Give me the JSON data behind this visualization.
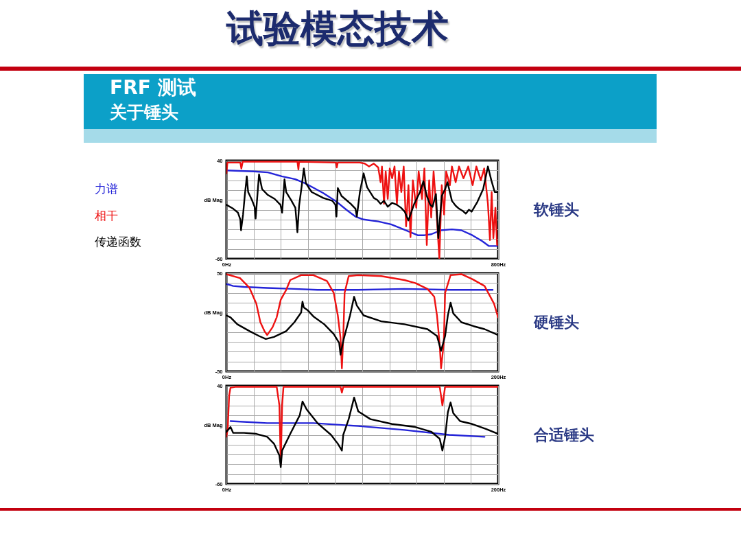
{
  "chart_data": [
    {
      "type": "line",
      "ylabel": "dB Mag",
      "annotations": [
        "试验模态技术",
        "FRF 测试",
        "关于锤头",
        "软锤头"
      ],
      "legend": "left",
      "grid": true,
      "xlim": [
        0,
        800
      ],
      "ylim": [
        -60,
        40
      ],
      "xticks": [
        {
          "value": 0,
          "label": "0Hz"
        },
        {
          "value": 80,
          "label": null
        },
        {
          "value": 160,
          "label": null
        },
        {
          "value": 240,
          "label": null
        },
        {
          "value": 320,
          "label": null
        },
        {
          "value": 400,
          "label": null
        },
        {
          "value": 480,
          "label": null
        },
        {
          "value": 560,
          "label": null
        },
        {
          "value": 640,
          "label": null
        },
        {
          "value": 720,
          "label": null
        },
        {
          "value": 800,
          "label": "800Hz"
        }
      ],
      "yticks": [
        -60,
        {
          "value": -50,
          "label": null
        },
        {
          "value": -40,
          "label": null
        },
        {
          "value": -30,
          "label": null
        },
        {
          "value": -20,
          "label": null
        },
        {
          "value": -10,
          "label": null
        },
        {
          "value": 0,
          "label": null
        },
        {
          "value": 10,
          "label": null
        },
        {
          "value": 20,
          "label": null
        },
        {
          "value": 30,
          "label": null
        },
        40
      ],
      "series": [
        {
          "name": "力谱",
          "color": "#2424d8",
          "x": [
            0,
            81,
            122,
            163,
            203,
            231,
            258,
            285,
            325,
            353,
            380,
            404,
            447,
            485,
            529,
            563,
            583,
            603,
            631,
            664,
            692,
            724,
            753,
            773,
            797
          ],
          "values": [
            30,
            29,
            28,
            24,
            21,
            17,
            12,
            7,
            -2,
            -10,
            -17,
            -20,
            -22,
            -25,
            -31,
            -36,
            -36,
            -35,
            -31,
            -30,
            -31,
            -36,
            -42,
            -47,
            -47
          ]
        },
        {
          "name": "相干",
          "color": "#ee1111",
          "x": [
            0,
            3,
            41,
            44,
            48,
            122,
            209,
            212,
            214,
            323,
            325,
            328,
            393,
            407,
            420,
            434,
            447,
            454,
            458,
            464,
            469,
            475,
            481,
            488,
            495,
            502,
            508,
            515,
            522,
            529,
            536,
            542,
            549,
            559,
            566,
            576,
            583,
            590,
            597,
            603,
            610,
            617,
            627,
            634,
            641,
            647,
            658,
            664,
            675,
            685,
            698,
            712,
            725,
            736,
            749,
            759,
            770,
            776,
            781,
            786,
            792,
            797
          ],
          "values": [
            27,
            38,
            38,
            32,
            39,
            39,
            39,
            31,
            39,
            38,
            33,
            38,
            38,
            37,
            34,
            37,
            33,
            18,
            34,
            -4,
            29,
            1,
            32,
            22,
            34,
            -4,
            29,
            8,
            34,
            -27,
            15,
            -38,
            20,
            -8,
            29,
            1,
            32,
            -46,
            20,
            -18,
            29,
            -4,
            -60,
            15,
            -15,
            29,
            15,
            34,
            18,
            34,
            22,
            34,
            15,
            34,
            20,
            32,
            -4,
            -41,
            8,
            -39,
            -8,
            -46
          ]
        },
        {
          "name": "传递函数",
          "color": "#000000",
          "x": [
            0,
            20,
            34,
            41,
            43,
            49,
            54,
            60,
            64,
            75,
            83,
            86,
            92,
            96,
            105,
            122,
            142,
            159,
            164,
            168,
            171,
            176,
            190,
            203,
            209,
            214,
            222,
            228,
            234,
            251,
            285,
            312,
            321,
            324,
            328,
            339,
            366,
            380,
            384,
            393,
            404,
            414,
            434,
            444,
            454,
            464,
            475,
            488,
            502,
            514,
            525,
            536,
            553,
            570,
            580,
            590,
            600,
            607,
            617,
            624,
            634,
            644,
            651,
            664,
            675,
            685,
            695,
            705,
            714,
            722,
            739,
            756,
            770,
            780,
            790,
            800
          ],
          "values": [
            -5,
            -9,
            -13,
            -20,
            -31,
            -15,
            4,
            24,
            8,
            0,
            -7,
            -19,
            8,
            26,
            11,
            5,
            1,
            -5,
            -13,
            6,
            21,
            8,
            0,
            -8,
            -33,
            -6,
            15,
            32,
            17,
            8,
            2,
            -1,
            -5,
            -17,
            12,
            4,
            -4,
            -9,
            -17,
            8,
            27,
            13,
            2,
            0,
            -4,
            -1,
            -7,
            -3,
            -5,
            -8,
            -12,
            -21,
            -4,
            8,
            19,
            4,
            -5,
            -7,
            6,
            -39,
            4,
            11,
            18,
            -1,
            -6,
            -9,
            -11,
            -14,
            -10,
            -12,
            -2,
            11,
            34,
            20,
            8,
            8
          ]
        }
      ]
    },
    {
      "type": "line",
      "ylabel": "dB Mag",
      "annotations": [
        "硬锤头"
      ],
      "grid": true,
      "xlim": [
        0,
        200
      ],
      "ylim": [
        -50,
        50
      ],
      "xticks": [
        {
          "value": 0,
          "label": "0Hz"
        },
        {
          "value": 20,
          "label": null
        },
        {
          "value": 40,
          "label": null
        },
        {
          "value": 60,
          "label": null
        },
        {
          "value": 80,
          "label": null
        },
        {
          "value": 100,
          "label": null
        },
        {
          "value": 120,
          "label": null
        },
        {
          "value": 140,
          "label": null
        },
        {
          "value": 160,
          "label": null
        },
        {
          "value": 180,
          "label": null
        },
        {
          "value": 200,
          "label": "200Hz"
        }
      ],
      "yticks": [
        -50,
        {
          "value": -40,
          "label": null
        },
        {
          "value": -30,
          "label": null
        },
        {
          "value": -20,
          "label": null
        },
        {
          "value": -10,
          "label": null
        },
        {
          "value": 0,
          "label": null
        },
        {
          "value": 10,
          "label": null
        },
        {
          "value": 20,
          "label": null
        },
        {
          "value": 30,
          "label": null
        },
        {
          "value": 40,
          "label": null
        },
        50
      ],
      "series": [
        {
          "color": "#2424d8",
          "x": [
            0,
            5,
            13,
            30,
            50,
            67,
            97,
            131,
            165,
            196
          ],
          "values": [
            39,
            37,
            36,
            35,
            34,
            33,
            33,
            34,
            33,
            33
          ]
        },
        {
          "color": "#ee1111",
          "x": [
            0,
            10,
            17,
            22,
            25,
            28,
            30,
            34,
            37,
            40,
            44,
            47,
            55,
            64,
            74,
            79,
            82,
            84,
            85,
            86,
            87,
            90,
            97,
            114,
            131,
            139,
            148,
            153,
            155,
            157,
            158,
            160,
            161,
            165,
            173,
            181,
            190,
            197,
            200
          ],
          "values": [
            49,
            45,
            35,
            19,
            0,
            -9,
            -13,
            -5,
            5,
            23,
            33,
            43,
            48,
            48,
            42,
            30,
            7,
            -16,
            -47,
            -16,
            30,
            47,
            48,
            47,
            43,
            40,
            34,
            26,
            7,
            -23,
            -47,
            -21,
            30,
            48,
            49,
            44,
            37,
            19,
            5
          ]
        },
        {
          "color": "#000000",
          "x": [
            0,
            3,
            8,
            17,
            24,
            29,
            35,
            44,
            50,
            55,
            56,
            57,
            60,
            64,
            72,
            79,
            83,
            84,
            86,
            91,
            94,
            96,
            101,
            114,
            131,
            148,
            155,
            158,
            161,
            163,
            165,
            167,
            173,
            182,
            190,
            200
          ],
          "values": [
            7,
            5,
            -2,
            -9,
            -14,
            -17,
            -15,
            -9,
            0,
            10,
            21,
            15,
            12,
            6,
            -2,
            -12,
            -21,
            -33,
            -19,
            7,
            26,
            17,
            7,
            1,
            -2,
            -7,
            -14,
            -29,
            -14,
            7,
            20,
            9,
            0,
            -4,
            -7,
            -13
          ]
        }
      ]
    },
    {
      "type": "line",
      "ylabel": "dB Mag",
      "annotations": [
        "合适锤头"
      ],
      "grid": true,
      "xlim": [
        0,
        200
      ],
      "ylim": [
        -60,
        40
      ],
      "xticks": [
        {
          "value": 0,
          "label": "0Hz"
        },
        {
          "value": 20,
          "label": null
        },
        {
          "value": 40,
          "label": null
        },
        {
          "value": 60,
          "label": null
        },
        {
          "value": 80,
          "label": null
        },
        {
          "value": 100,
          "label": null
        },
        {
          "value": 120,
          "label": null
        },
        {
          "value": 140,
          "label": null
        },
        {
          "value": 160,
          "label": null
        },
        {
          "value": 180,
          "label": null
        },
        {
          "value": 200,
          "label": "200Hz"
        }
      ],
      "yticks": [
        -60,
        {
          "value": -50,
          "label": null
        },
        {
          "value": -40,
          "label": null
        },
        {
          "value": -30,
          "label": null
        },
        {
          "value": -20,
          "label": null
        },
        {
          "value": -10,
          "label": null
        },
        {
          "value": 0,
          "label": null
        },
        {
          "value": 10,
          "label": null
        },
        {
          "value": 20,
          "label": null
        },
        {
          "value": 30,
          "label": null
        },
        40
      ],
      "series": [
        {
          "color": "#2424d8",
          "x": [
            3,
            30,
            64,
            97,
            131,
            164,
            190
          ],
          "values": [
            4,
            2,
            2,
            -1,
            -5,
            -10,
            -12
          ]
        },
        {
          "color": "#ee1111",
          "x": [
            0,
            1,
            2,
            3,
            7,
            37,
            39,
            40,
            41,
            42,
            84,
            85,
            86,
            157,
            159,
            161,
            200
          ],
          "values": [
            -12,
            -3,
            30,
            38,
            39,
            39,
            20,
            -40,
            20,
            39,
            39,
            33,
            39,
            39,
            20,
            39,
            39
          ]
        },
        {
          "color": "#000000",
          "x": [
            0,
            3,
            5,
            13,
            22,
            30,
            35,
            39,
            40,
            41,
            47,
            54,
            56,
            59,
            67,
            77,
            82,
            85,
            86,
            90,
            94,
            97,
            106,
            122,
            139,
            151,
            157,
            159,
            161,
            163,
            165,
            167,
            172,
            181,
            191,
            200
          ],
          "values": [
            -7,
            -2,
            -8,
            -8,
            -9,
            -12,
            -19,
            -31,
            -43,
            -26,
            -9,
            10,
            24,
            16,
            2,
            -10,
            -19,
            -26,
            -10,
            6,
            28,
            14,
            6,
            1,
            -2,
            -7,
            -14,
            -26,
            -12,
            13,
            23,
            12,
            4,
            1,
            -4,
            -9
          ]
        }
      ]
    }
  ]
}
